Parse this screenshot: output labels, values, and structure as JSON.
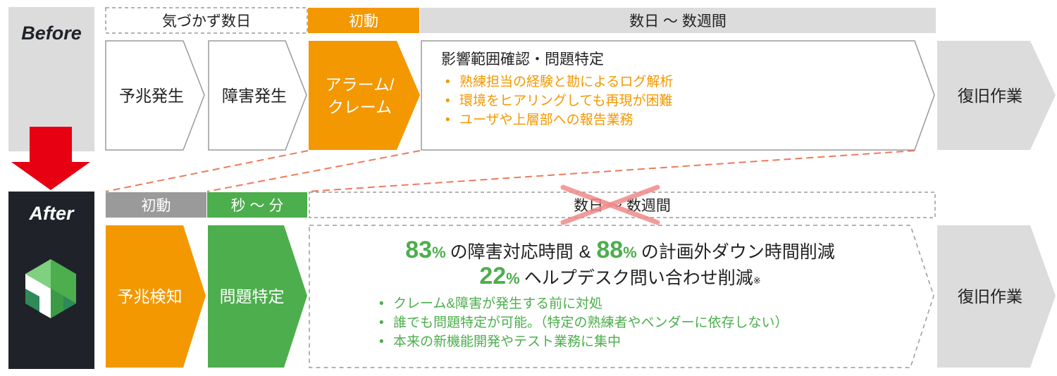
{
  "before": {
    "label": "Before",
    "bands": {
      "unnoticed": "気づかず数日",
      "initial": "初動",
      "duration": "数日 〜 数週間"
    },
    "steps": {
      "sign": "予兆発生",
      "failure": "障害発生",
      "alarm": "アラーム/\nクレーム",
      "recovery": "復旧作業"
    },
    "investigation": {
      "title": "影響範囲確認・問題特定",
      "bullets": [
        "熟練担当の経験と勘によるログ解析",
        "環境をヒアリングしても再現が困難",
        "ユーザや上層部への報告業務"
      ]
    }
  },
  "after": {
    "label": "After",
    "bands": {
      "initial": "初動",
      "duration": "秒 〜 分",
      "old_duration": "数日 〜 数週間"
    },
    "steps": {
      "detect": "予兆検知",
      "identify": "問題特定",
      "recovery": "復旧作業"
    },
    "results": {
      "stat1_num": "83",
      "stat1_unit": "%",
      "stat1_text": "の障害対応時間",
      "amp": "&",
      "stat2_num": "88",
      "stat2_unit": "%",
      "stat2_text": "の計画外ダウン時間削減",
      "stat3_num": "22",
      "stat3_unit": "%",
      "stat3_text": "ヘルプデスク問い合わせ削減",
      "note_mark": "※",
      "bullets": [
        "クレーム&障害が発生する前に対処",
        "誰でも問題特定が可能。（特定の熟練者やベンダーに依存しない）",
        "本来の新機能開発やテスト業務に集中"
      ]
    }
  },
  "colors": {
    "orange": "#f39800",
    "green": "#4cae4c",
    "gray": "#dcdcdc",
    "dark": "#1f2329",
    "red": "#e60012"
  },
  "icons": {
    "down_arrow": "down-arrow-icon",
    "logo": "cube-logo-icon",
    "cross": "cross-out-icon"
  }
}
